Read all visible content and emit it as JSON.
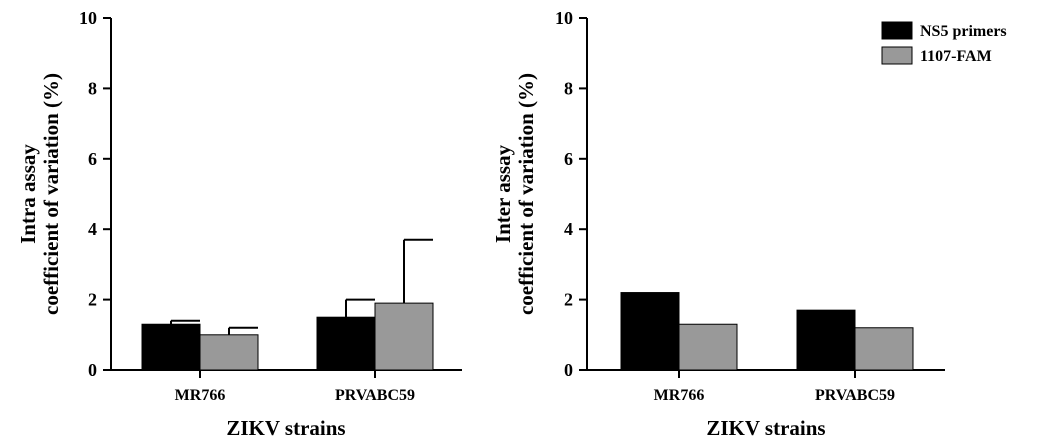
{
  "legend": [
    {
      "label": "NS5 primers",
      "color": "#000000"
    },
    {
      "label": "1107-FAM",
      "color": "#999999"
    }
  ],
  "chart_data": [
    {
      "type": "bar",
      "categories": [
        "MR766",
        "PRVABC59"
      ],
      "series": [
        {
          "name": "NS5 primers",
          "values": [
            1.3,
            1.5
          ],
          "errors": [
            0.1,
            0.5
          ],
          "color": "#000000"
        },
        {
          "name": "1107-FAM",
          "values": [
            1.0,
            1.9
          ],
          "errors": [
            0.2,
            1.8
          ],
          "color": "#999999"
        }
      ],
      "ylabel_line1": "Intra assay",
      "ylabel_line2": "coefficient of variation (%)",
      "xlabel": "ZIKV strains",
      "ylim": [
        0,
        10
      ],
      "yticks": [
        0,
        2,
        4,
        6,
        8,
        10
      ],
      "grid": false
    },
    {
      "type": "bar",
      "categories": [
        "MR766",
        "PRVABC59"
      ],
      "series": [
        {
          "name": "NS5 primers",
          "values": [
            2.2,
            1.7
          ],
          "color": "#000000"
        },
        {
          "name": "1107-FAM",
          "values": [
            1.3,
            1.2
          ],
          "color": "#999999"
        }
      ],
      "ylabel_line1": "Inter assay",
      "ylabel_line2": "coefficient of variation (%)",
      "xlabel": "ZIKV strains",
      "ylim": [
        0,
        10
      ],
      "yticks": [
        0,
        2,
        4,
        6,
        8,
        10
      ],
      "grid": false,
      "legend_position": "top-right"
    }
  ]
}
